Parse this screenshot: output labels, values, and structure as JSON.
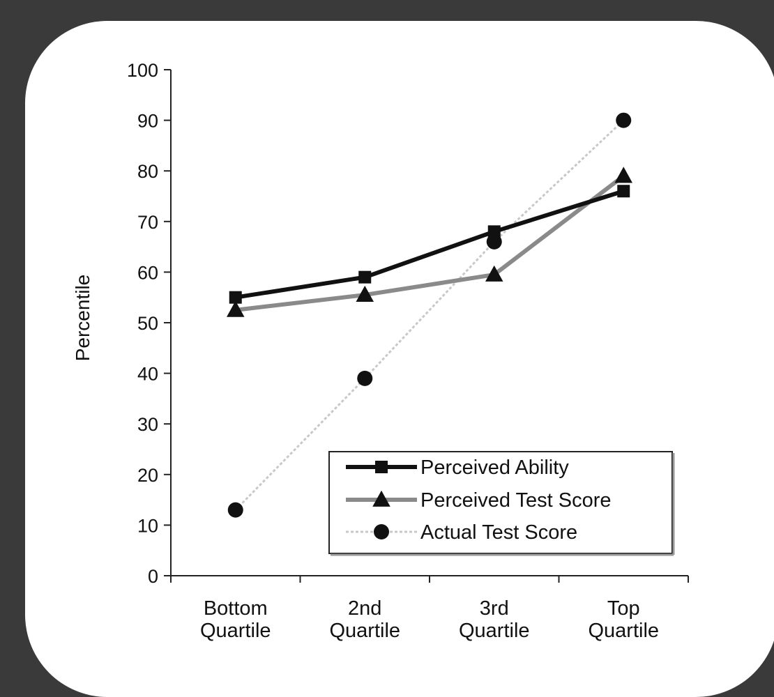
{
  "chart_data": {
    "type": "line",
    "title": "",
    "ylabel": "Percentile",
    "xlabel": "",
    "ylim": [
      0,
      100
    ],
    "yticks": [
      "0",
      "10",
      "20",
      "30",
      "40",
      "50",
      "60",
      "70",
      "80",
      "90",
      "100"
    ],
    "categories": [
      [
        "Bottom",
        "Quartile"
      ],
      [
        "2nd",
        "Quartile"
      ],
      [
        "3rd",
        "Quartile"
      ],
      [
        "Top",
        "Quartile"
      ]
    ],
    "series": [
      {
        "name": "Perceived Ability",
        "marker": "square",
        "color": "#111111",
        "values": [
          55,
          59,
          68,
          76
        ]
      },
      {
        "name": "Perceived Test Score",
        "marker": "triangle",
        "color": "#8a8a8a",
        "values": [
          52.5,
          55.5,
          59.5,
          79
        ]
      },
      {
        "name": "Actual Test Score",
        "marker": "circle",
        "color": "#c8c8c8",
        "values": [
          13,
          39,
          66,
          90
        ]
      }
    ],
    "legend_position": "bottom-right",
    "grid": false
  }
}
